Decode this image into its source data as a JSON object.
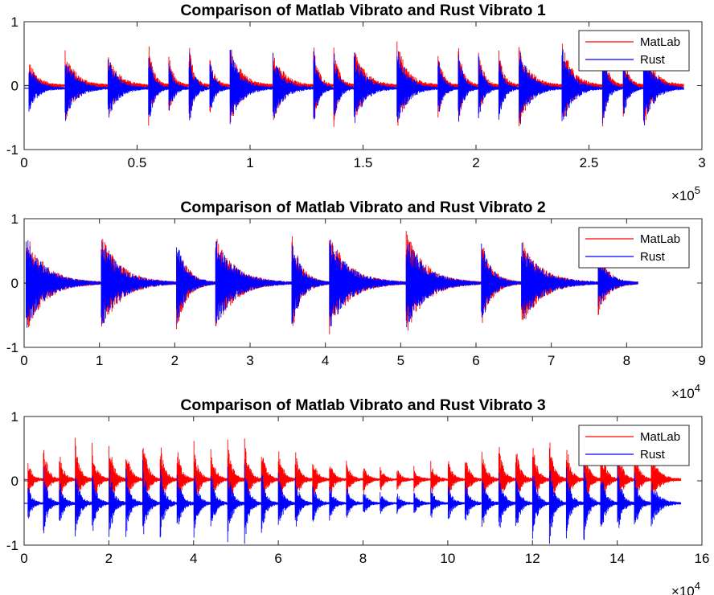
{
  "chart_data": [
    {
      "type": "line",
      "title": "Comparison of Matlab Vibrato and Rust Vibrato 1",
      "xlabel": "",
      "ylabel": "",
      "xlim": [
        0,
        300000
      ],
      "ylim": [
        -1,
        1
      ],
      "x_ticks": [
        0,
        0.5,
        1,
        1.5,
        2,
        2.5,
        3
      ],
      "x_tick_labels": [
        "0",
        "0.5",
        "1",
        "1.5",
        "2",
        "2.5",
        "3"
      ],
      "x_multiplier_base": "×10",
      "x_multiplier_exp": "5",
      "y_ticks": [
        -1,
        0,
        1
      ],
      "y_tick_labels": [
        "-1",
        "0",
        "1"
      ],
      "legend_position": "top-right",
      "series": [
        {
          "name": "MatLab",
          "color": "#ff0000"
        },
        {
          "name": "Rust",
          "color": "#0000ff"
        }
      ],
      "signal_length": 292000,
      "onsets": [
        2000,
        18000,
        37000,
        55000,
        64000,
        73000,
        82000,
        91000,
        110000,
        128000,
        137000,
        146000,
        165000,
        183000,
        192000,
        201000,
        210000,
        219000,
        238000,
        256000,
        265000,
        274000
      ],
      "peak_amplitudes": [
        0.4,
        0.58,
        0.55,
        0.72,
        0.48,
        0.65,
        0.52,
        0.68,
        0.62,
        0.7,
        0.66,
        0.63,
        0.73,
        0.6,
        0.71,
        0.64,
        0.6,
        0.69,
        0.72,
        0.67,
        0.58,
        0.7
      ],
      "offsets": {
        "MatLab": 0.0,
        "Rust": -0.04
      }
    },
    {
      "type": "line",
      "title": "Comparison of Matlab Vibrato and Rust Vibrato 2",
      "xlabel": "",
      "ylabel": "",
      "xlim": [
        0,
        90000
      ],
      "ylim": [
        -1,
        1
      ],
      "x_ticks": [
        0,
        1,
        2,
        3,
        4,
        5,
        6,
        7,
        8,
        9
      ],
      "x_tick_labels": [
        "0",
        "1",
        "2",
        "3",
        "4",
        "5",
        "6",
        "7",
        "8",
        "9"
      ],
      "x_multiplier_base": "×10",
      "x_multiplier_exp": "4",
      "y_ticks": [
        -1,
        0,
        1
      ],
      "y_tick_labels": [
        "-1",
        "0",
        "1"
      ],
      "legend_position": "top-right",
      "series": [
        {
          "name": "MatLab",
          "color": "#ff0000"
        },
        {
          "name": "Rust",
          "color": "#0000ff"
        }
      ],
      "signal_length": 81500,
      "onsets": [
        200,
        10200,
        20200,
        25400,
        35500,
        40500,
        50700,
        60700,
        66000,
        76200
      ],
      "peak_amplitudes": [
        0.8,
        0.78,
        0.77,
        0.75,
        0.82,
        0.8,
        0.82,
        0.72,
        0.7,
        0.52
      ],
      "offsets": {
        "MatLab": 0.0,
        "Rust": 0.0
      }
    },
    {
      "type": "line",
      "title": "Comparison of Matlab Vibrato and Rust Vibrato 3",
      "xlabel": "",
      "ylabel": "",
      "xlim": [
        0,
        160000
      ],
      "ylim": [
        -1,
        1
      ],
      "x_ticks": [
        0,
        2,
        4,
        6,
        8,
        10,
        12,
        14,
        16
      ],
      "x_tick_labels": [
        "0",
        "2",
        "4",
        "6",
        "8",
        "10",
        "12",
        "14",
        "16"
      ],
      "x_multiplier_base": "×10",
      "x_multiplier_exp": "4",
      "y_ticks": [
        -1,
        0,
        1
      ],
      "y_tick_labels": [
        "-1",
        "0",
        "1"
      ],
      "legend_position": "top-right",
      "series": [
        {
          "name": "MatLab",
          "color": "#ff0000"
        },
        {
          "name": "Rust",
          "color": "#0000ff"
        }
      ],
      "signal_length": 155000,
      "onsets": [
        800,
        4500,
        8200,
        12000,
        16000,
        20000,
        24000,
        28000,
        32000,
        36000,
        40000,
        44000,
        48000,
        52000,
        56000,
        60000,
        64000,
        68000,
        72000,
        76000,
        80000,
        84000,
        88000,
        92000,
        96000,
        100000,
        104000,
        108000,
        112000,
        116000,
        120000,
        124000,
        128000,
        132000,
        136000,
        140000,
        144000,
        148000
      ],
      "peak_amplitudes": [
        0.35,
        0.65,
        0.5,
        0.68,
        0.6,
        0.72,
        0.58,
        0.78,
        0.7,
        0.6,
        0.65,
        0.58,
        0.7,
        0.75,
        0.58,
        0.55,
        0.48,
        0.4,
        0.36,
        0.32,
        0.25,
        0.2,
        0.18,
        0.2,
        0.28,
        0.35,
        0.45,
        0.55,
        0.62,
        0.58,
        0.65,
        0.7,
        0.6,
        0.75,
        0.72,
        0.68,
        0.6,
        0.4
      ],
      "offsets": {
        "MatLab": 0.02,
        "Rust": -0.35
      }
    }
  ]
}
